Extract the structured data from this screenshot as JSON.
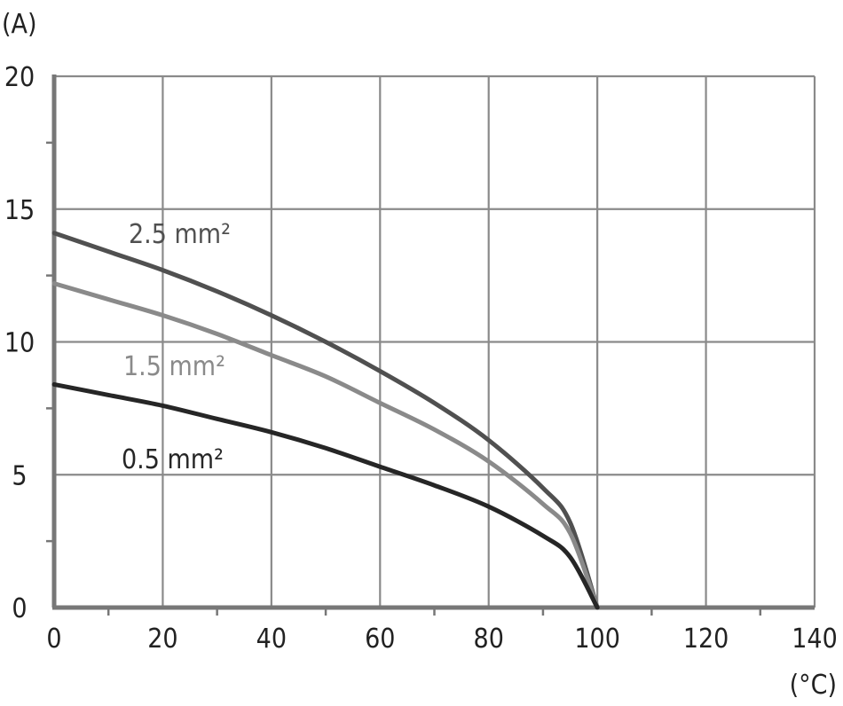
{
  "chart_data": {
    "type": "line",
    "ylabel": "(A)",
    "xlabel": "(°C)",
    "xlim": [
      0,
      140
    ],
    "ylim": [
      0,
      20
    ],
    "x_ticks": [
      0,
      20,
      40,
      60,
      80,
      100,
      120,
      140
    ],
    "y_ticks": [
      0,
      5,
      10,
      15,
      20
    ],
    "grid": true,
    "series": [
      {
        "name": "2.5 mm²",
        "color": "#505050",
        "x": [
          0,
          10,
          20,
          30,
          40,
          50,
          60,
          70,
          80,
          90,
          95,
          100
        ],
        "y": [
          14.1,
          13.4,
          12.7,
          11.9,
          11.0,
          10.0,
          8.9,
          7.7,
          6.3,
          4.5,
          3.2,
          0
        ]
      },
      {
        "name": "1.5 mm²",
        "color": "#8a8a8a",
        "x": [
          0,
          10,
          20,
          30,
          40,
          50,
          60,
          70,
          80,
          90,
          95,
          100
        ],
        "y": [
          12.2,
          11.6,
          11.0,
          10.3,
          9.5,
          8.7,
          7.7,
          6.7,
          5.5,
          3.9,
          2.8,
          0
        ]
      },
      {
        "name": "0.5 mm²",
        "color": "#262626",
        "x": [
          0,
          10,
          20,
          30,
          40,
          50,
          60,
          70,
          80,
          90,
          95,
          100
        ],
        "y": [
          8.4,
          8.0,
          7.6,
          7.1,
          6.6,
          6.0,
          5.3,
          4.6,
          3.8,
          2.7,
          1.9,
          0
        ]
      }
    ]
  }
}
